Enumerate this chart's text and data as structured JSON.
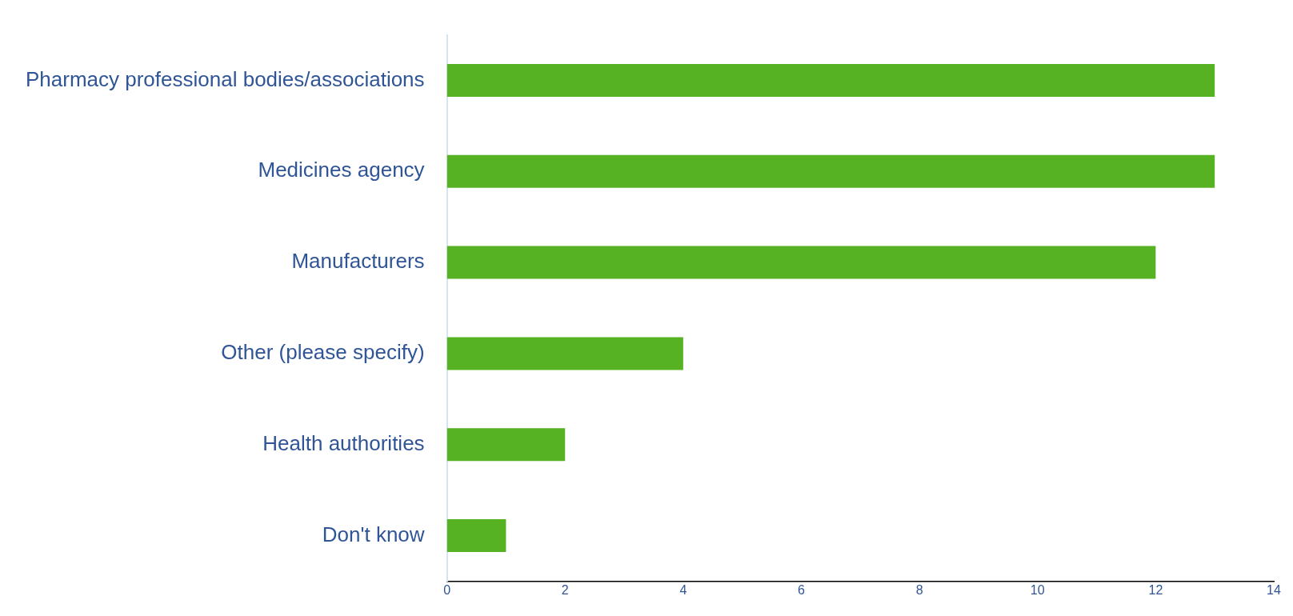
{
  "chart_data": {
    "type": "bar",
    "orientation": "horizontal",
    "categories": [
      "Pharmacy professional bodies/associations",
      "Medicines agency",
      "Manufacturers",
      "Other (please specify)",
      "Health authorities",
      "Don't know"
    ],
    "values": [
      13,
      13,
      12,
      4,
      2,
      1
    ],
    "color": "#56b123",
    "xlim": [
      0,
      14
    ],
    "xticks": [
      0,
      2,
      4,
      6,
      8,
      10,
      12,
      14
    ],
    "grid": false,
    "legend": false
  }
}
